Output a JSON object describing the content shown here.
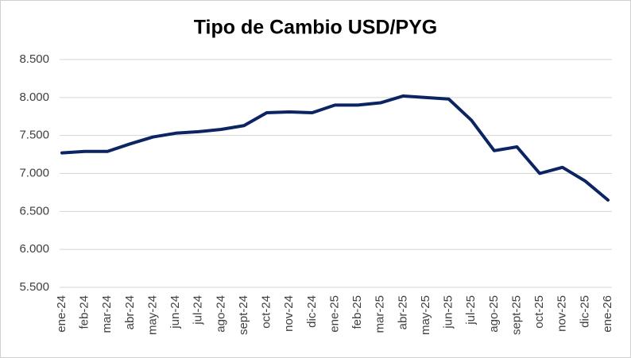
{
  "chart_data": {
    "type": "line",
    "title": "Tipo de Cambio USD/PYG",
    "categories": [
      "ene-24",
      "feb-24",
      "mar-24",
      "abr-24",
      "may-24",
      "jun-24",
      "jul-24",
      "ago-24",
      "sept-24",
      "oct-24",
      "nov-24",
      "dic-24",
      "ene-25",
      "feb-25",
      "mar-25",
      "abr-25",
      "may-25",
      "jun-25",
      "jul-25",
      "ago-25",
      "sept-25",
      "oct-25",
      "nov-25",
      "dic-25",
      "ene-26"
    ],
    "series": [
      {
        "name": "USD/PYG",
        "color": "#0c2461",
        "values": [
          7270,
          7290,
          7290,
          7390,
          7480,
          7530,
          7550,
          7580,
          7630,
          7800,
          7810,
          7800,
          7900,
          7900,
          7930,
          8020,
          8000,
          7980,
          7700,
          7300,
          7350,
          7000,
          7080,
          6900,
          6650
        ]
      }
    ],
    "ylim": [
      5500,
      8500
    ],
    "yticks": [
      {
        "value": 5500,
        "label": "5.500"
      },
      {
        "value": 6000,
        "label": "6.000"
      },
      {
        "value": 6500,
        "label": "6.500"
      },
      {
        "value": 7000,
        "label": "7.000"
      },
      {
        "value": 7500,
        "label": "7.500"
      },
      {
        "value": 8000,
        "label": "8.000"
      },
      {
        "value": 8500,
        "label": "8.500"
      }
    ],
    "grid": true
  }
}
